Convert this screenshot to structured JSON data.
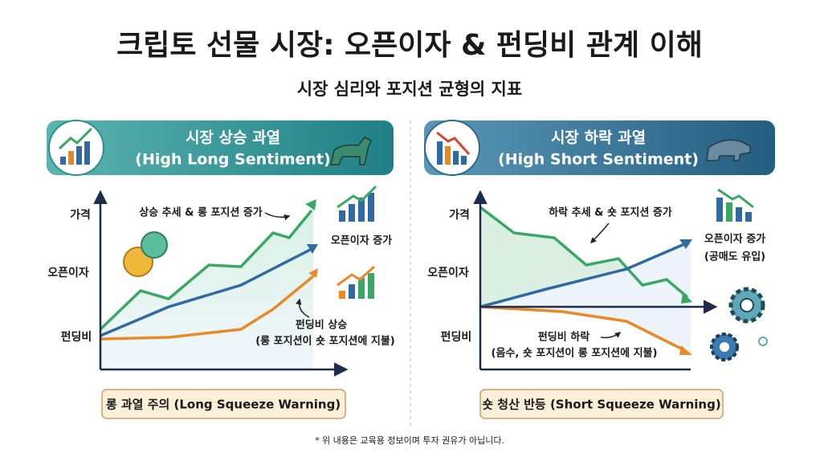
{
  "title": "크립토 선물 시장: 오픈이자 & 펀딩비 관계 이해",
  "subtitle": "시장 심리와 포지션 균형의 지표",
  "panels": [
    {
      "header_title": "시장 상승 과열",
      "header_subtitle": "(High Long Sentiment)",
      "axis_labels": [
        "가격",
        "오픈이자",
        "펀딩비"
      ],
      "annotations": [
        "상승 추세 & 롱 포지션 증가",
        "오픈이자 증가",
        "펀딩비 상승",
        "(롱 포지션이 숏 포지션에 지불)"
      ],
      "warning": "롱 과열 주의 (Long Squeeze Warning)"
    },
    {
      "header_title": "시장 하락 과열",
      "header_subtitle": "(High Short Sentiment)",
      "axis_labels": [
        "가격",
        "오픈이자",
        "펀딩비"
      ],
      "annotations": [
        "하락 추세 & 숏 포지션 증가",
        "오픈이자 증가",
        "(공매도 유입)",
        "펀딩비 하락",
        "(음수, 숏 포지션이 롱 포지션에 지불)"
      ],
      "warning": "숏 청산 반등 (Short Squeeze Warning)"
    }
  ],
  "footnote": "* 위 내용은 교육용 정보이며 투자 권유가 아닙니다."
}
